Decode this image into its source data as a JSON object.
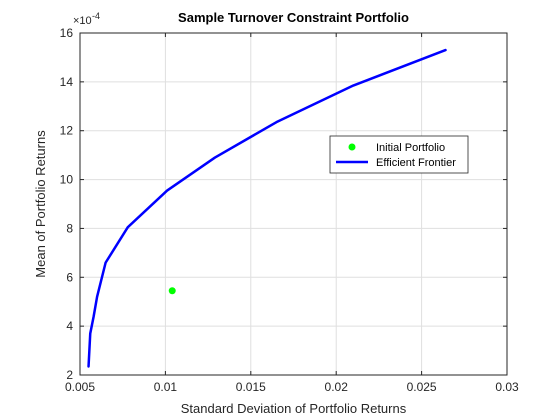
{
  "chart_data": {
    "type": "line",
    "title": "Sample Turnover Constraint Portfolio",
    "xlabel": "Standard Deviation of Portfolio Returns",
    "ylabel": "Mean of Portfolio Returns",
    "y_exponent_label": "×10",
    "y_exponent_power": "-4",
    "xlim": [
      0.005,
      0.03
    ],
    "ylim": [
      2,
      16
    ],
    "x_ticks": [
      0.005,
      0.01,
      0.015,
      0.02,
      0.025,
      0.03
    ],
    "x_tick_labels": [
      "0.005",
      "0.01",
      "0.015",
      "0.02",
      "0.025",
      "0.03"
    ],
    "y_ticks": [
      2,
      4,
      6,
      8,
      10,
      12,
      14,
      16
    ],
    "y_tick_labels": [
      "2",
      "4",
      "6",
      "8",
      "10",
      "12",
      "14",
      "16"
    ],
    "grid": true,
    "legend_position": "upper-right",
    "series": [
      {
        "name": "Initial Portfolio",
        "type": "scatter",
        "color": "#00ff00",
        "x": [
          0.0104
        ],
        "y": [
          5.45
        ]
      },
      {
        "name": "Efficient Frontier",
        "type": "line",
        "color": "#0000ff",
        "x": [
          0.0055,
          0.0056,
          0.0058,
          0.006,
          0.0065,
          0.0078,
          0.0101,
          0.0129,
          0.0165,
          0.021,
          0.0264
        ],
        "y": [
          2.35,
          3.7,
          4.4,
          5.2,
          6.6,
          8.05,
          9.55,
          10.9,
          12.35,
          13.85,
          15.3
        ]
      }
    ]
  }
}
